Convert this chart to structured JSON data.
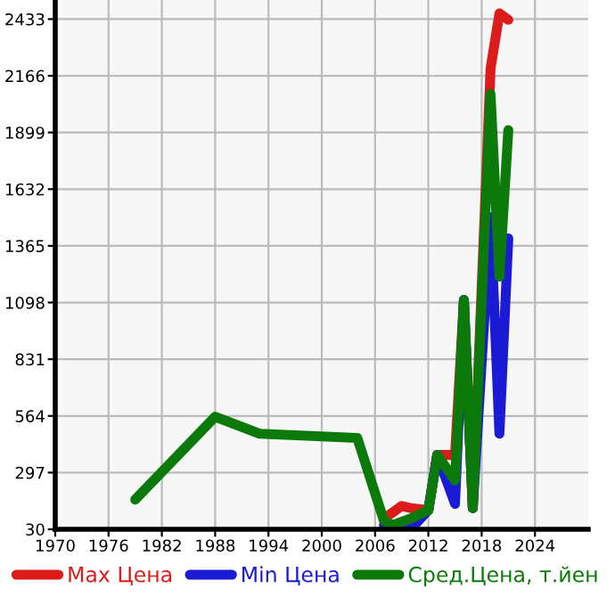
{
  "chart_data": {
    "type": "line",
    "xlim": [
      1970,
      2030
    ],
    "xticks": [
      1970,
      1976,
      1982,
      1988,
      1994,
      2000,
      2006,
      2012,
      2018,
      2024
    ],
    "ylim": [
      30,
      2523
    ],
    "yticks": [
      30,
      297,
      564,
      831,
      1098,
      1365,
      1632,
      1899,
      2166,
      2433
    ],
    "grid": true,
    "legend": "bottom",
    "line_style": "solid",
    "marker": "none",
    "series": [
      {
        "name": "Max Цена",
        "color": "#dd1b1b",
        "x": [
          2007,
          2008,
          2009,
          2010,
          2012,
          2013,
          2014,
          2015,
          2016,
          2017,
          2019,
          2020,
          2021
        ],
        "values": [
          80,
          110,
          140,
          130,
          120,
          380,
          380,
          380,
          1110,
          130,
          2200,
          2460,
          2430
        ]
      },
      {
        "name": "Min Цена",
        "color": "#1b1bd6",
        "x": [
          2007,
          2008,
          2009,
          2010,
          2012,
          2013,
          2015,
          2016,
          2017,
          2019,
          2020,
          2021
        ],
        "values": [
          50,
          40,
          60,
          30,
          120,
          380,
          150,
          1110,
          130,
          1500,
          480,
          1400
        ]
      },
      {
        "name": "Сред.Цена, т.йен",
        "color": "#0b7a0b",
        "x": [
          1979,
          1988,
          1993,
          2004,
          2005,
          2007,
          2008,
          2010,
          2012,
          2013,
          2015,
          2016,
          2017,
          2019,
          2020,
          2021
        ],
        "values": [
          170,
          560,
          480,
          460,
          330,
          70,
          50,
          80,
          120,
          380,
          260,
          1110,
          130,
          2080,
          1220,
          1910
        ]
      }
    ]
  }
}
